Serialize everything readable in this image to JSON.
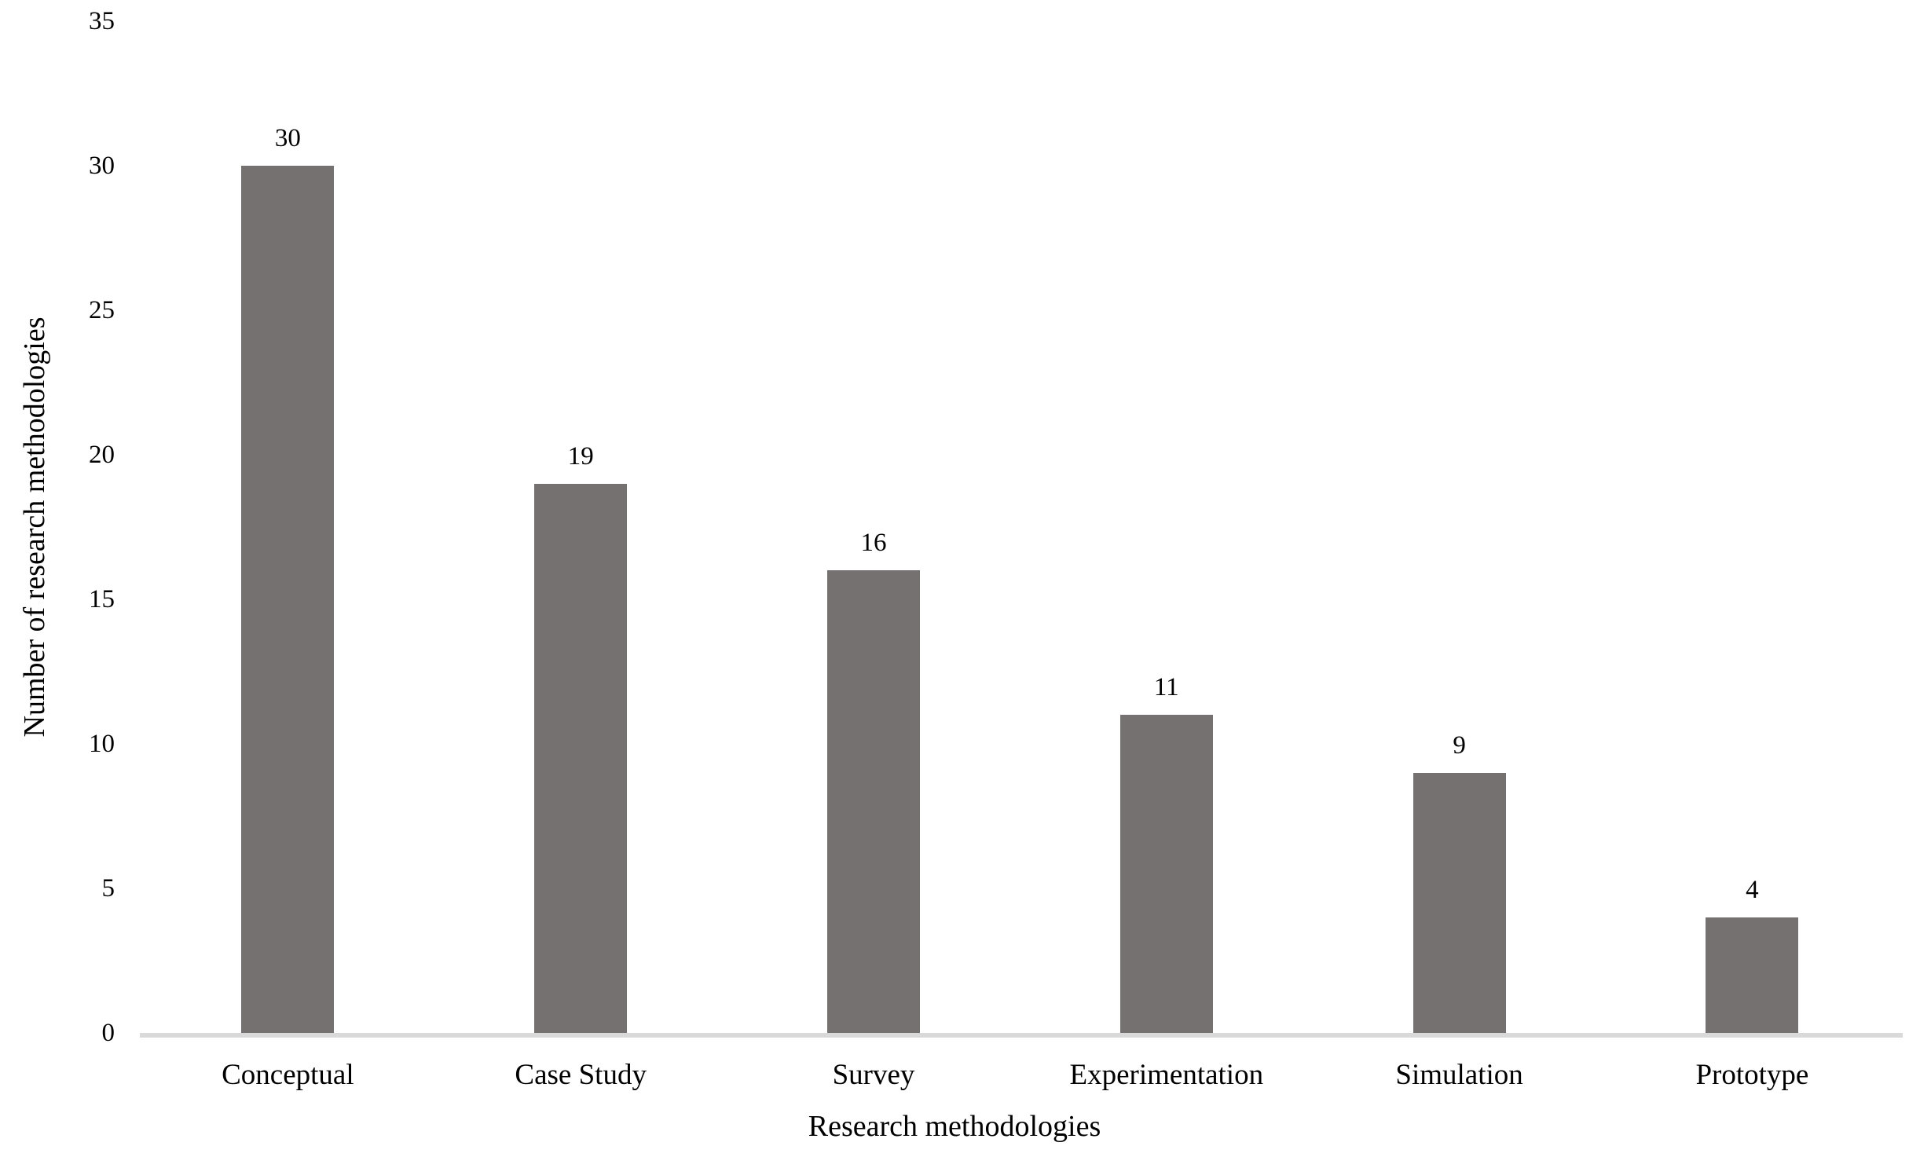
{
  "chart_data": {
    "type": "bar",
    "title": "",
    "categories": [
      "Conceptual",
      "Case Study",
      "Survey",
      "Experimentation",
      "Simulation",
      "Prototype"
    ],
    "values": [
      30,
      19,
      16,
      11,
      9,
      4
    ],
    "xlabel": "Research methodologies",
    "ylabel": "Number of research methodologies",
    "ylim": [
      0,
      35
    ],
    "yticks": [
      0,
      5,
      10,
      15,
      20,
      25,
      30,
      35
    ],
    "grid": "off",
    "legend": "none",
    "data_labels": "above bars",
    "colors": {
      "bar": "#767171",
      "axis_line": "#D9D9D9",
      "text": "#000000",
      "background": "#FFFFFF"
    }
  }
}
